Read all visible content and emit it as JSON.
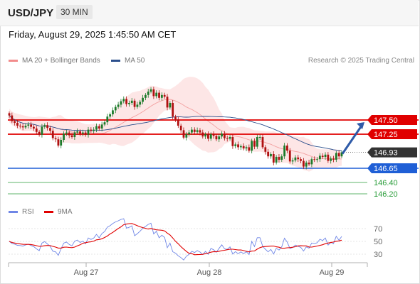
{
  "header": {
    "symbol": "USD/JPY",
    "timeframe": "30 MIN"
  },
  "timestamp": "Friday, August 29, 2025 1:45:50 AM CET",
  "price_legend": {
    "ma20_bb": "MA 20 + Bollinger Bands",
    "ma50": "MA 50",
    "credit": "Research © 2025 Trading Central"
  },
  "rsi_legend": {
    "rsi": "RSI",
    "ma9": "9MA"
  },
  "colors": {
    "bollinger": "#f08080",
    "ma50": "#2b4f8c",
    "resistance": "#e00000",
    "pivot": "#1f5fd6",
    "support": "#2a9d3a",
    "last": "#333333",
    "arrow": "#2e5aa8",
    "rsi": "#6f86e6",
    "ma9": "#e00000"
  },
  "chart_data": [
    {
      "type": "candlestick",
      "title": "",
      "x_ticks": [
        "Aug 27",
        "Aug 28",
        "Aug 29"
      ],
      "ylim": [
        145.8,
        148.4
      ],
      "levels": [
        {
          "value": 147.5,
          "label": "147.50",
          "kind": "resistance"
        },
        {
          "value": 147.25,
          "label": "147.25",
          "kind": "resistance"
        },
        {
          "value": 146.93,
          "label": "146.93",
          "kind": "last"
        },
        {
          "value": 146.65,
          "label": "146.65",
          "kind": "pivot"
        },
        {
          "value": 146.4,
          "label": "146.40",
          "kind": "support"
        },
        {
          "value": 146.2,
          "label": "146.20",
          "kind": "support"
        }
      ],
      "close": [
        147.58,
        147.48,
        147.45,
        147.4,
        147.39,
        147.37,
        147.4,
        147.42,
        147.38,
        147.35,
        147.29,
        147.24,
        147.38,
        147.41,
        147.36,
        147.31,
        147.18,
        147.16,
        147.05,
        147.15,
        147.26,
        147.28,
        147.23,
        147.2,
        147.28,
        147.3,
        147.26,
        147.28,
        147.24,
        147.33,
        147.31,
        147.33,
        147.39,
        147.35,
        147.42,
        147.46,
        147.56,
        147.6,
        147.67,
        147.73,
        147.77,
        147.83,
        147.87,
        147.78,
        147.8,
        147.84,
        147.73,
        147.77,
        147.82,
        147.89,
        147.94,
        148.0,
        148.04,
        147.92,
        147.98,
        147.89,
        147.94,
        147.91,
        147.72,
        147.8,
        147.56,
        147.51,
        147.4,
        147.32,
        147.19,
        147.25,
        147.28,
        147.33,
        147.29,
        147.32,
        147.28,
        147.21,
        147.25,
        147.17,
        147.25,
        147.22,
        147.16,
        147.21,
        147.26,
        147.18,
        147.17,
        147.2,
        147.04,
        147.07,
        147.02,
        147.04,
        147.0,
        147.02,
        146.96,
        147.13,
        147.03,
        147.2,
        147.2,
        147.02,
        146.94,
        146.86,
        146.9,
        146.75,
        146.85,
        146.8,
        146.86,
        147.05,
        146.96,
        146.77,
        146.79,
        146.84,
        146.81,
        146.78,
        146.68,
        146.75,
        146.72,
        146.81,
        146.8,
        146.81,
        146.87,
        146.85,
        146.89,
        146.78,
        146.82,
        146.8,
        146.92,
        146.86,
        146.93
      ],
      "projection": {
        "from": 146.93,
        "to": 147.5
      }
    },
    {
      "type": "line",
      "title": "",
      "series": [
        {
          "name": "RSI"
        },
        {
          "name": "9MA"
        }
      ],
      "x_ticks": [
        "Aug 27",
        "Aug 28",
        "Aug 29"
      ],
      "y_ticks": [
        70,
        50,
        30
      ],
      "ylim": [
        20,
        80
      ]
    }
  ]
}
